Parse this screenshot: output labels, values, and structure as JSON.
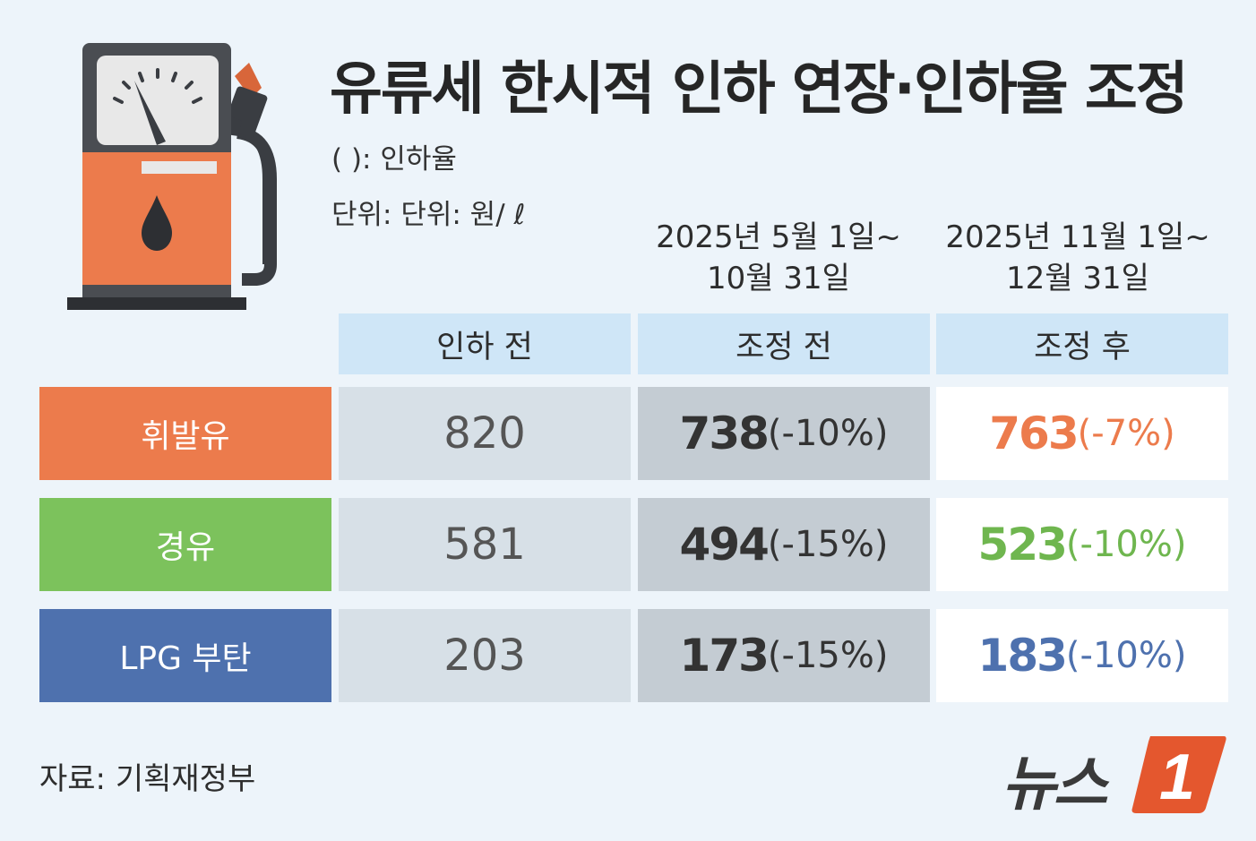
{
  "title": "유류세 한시적 인하 연장·인하율 조정",
  "notes": {
    "rate": "( ): 인하율",
    "unit": "단위: 단위: 원/ ℓ"
  },
  "periods": {
    "p1": [
      "2025년 5월 1일~",
      "10월 31일"
    ],
    "p2": [
      "2025년 11월 1일~",
      "12월 31일"
    ]
  },
  "columns": [
    "인하 전",
    "조정 전",
    "조정 후"
  ],
  "rows": [
    {
      "label": "휘발유",
      "color": "#ec7b4c",
      "before": "820",
      "pre_adjust": "738",
      "pre_rate": "(-10%)",
      "post_adjust": "763",
      "post_rate": "(-7%)"
    },
    {
      "label": "경유",
      "color": "#7cc25c",
      "before": "581",
      "pre_adjust": "494",
      "pre_rate": "(-15%)",
      "post_adjust": "523",
      "post_rate": "(-10%)"
    },
    {
      "label": "LPG 부탄",
      "color": "#4e71ae",
      "before": "203",
      "pre_adjust": "173",
      "pre_rate": "(-15%)",
      "post_adjust": "183",
      "post_rate": "(-10%)"
    }
  ],
  "source": "자료: 기획재정부",
  "logo": {
    "text": "뉴스",
    "mark": "1",
    "mark_color": "#e4572e"
  },
  "icons": [
    "fuel-pump-icon"
  ]
}
